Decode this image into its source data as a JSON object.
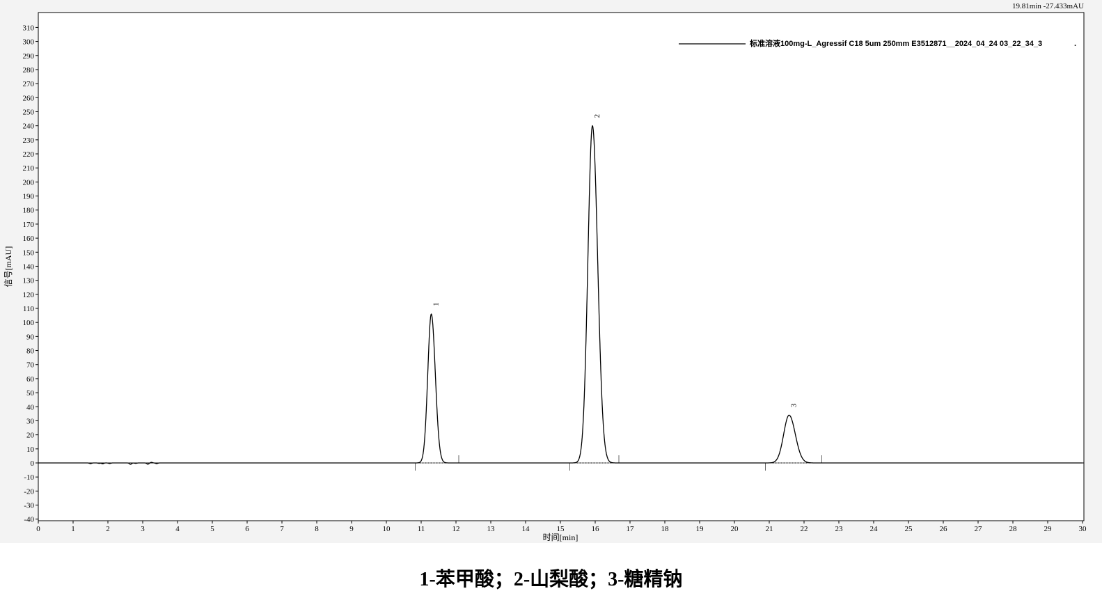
{
  "readout": "19.81min -27.433mAU",
  "caption": "1-苯甲酸；2-山梨酸；3-糖精钠",
  "chart_data": {
    "type": "line",
    "title": "",
    "xlabel": "时间[min]",
    "ylabel": "信号[mAU]",
    "xlim": [
      0,
      30
    ],
    "ylim": [
      -40,
      310
    ],
    "xticks": [
      0,
      1,
      2,
      3,
      4,
      5,
      6,
      7,
      8,
      9,
      10,
      11,
      12,
      13,
      14,
      15,
      16,
      17,
      18,
      19,
      20,
      21,
      22,
      23,
      24,
      25,
      26,
      27,
      28,
      29,
      30
    ],
    "yticks": [
      -40,
      -30,
      -20,
      -10,
      0,
      10,
      20,
      30,
      40,
      50,
      60,
      70,
      80,
      90,
      100,
      110,
      120,
      130,
      140,
      150,
      160,
      170,
      180,
      190,
      200,
      210,
      220,
      230,
      240,
      250,
      260,
      270,
      280,
      290,
      300,
      310
    ],
    "grid": false,
    "legend": {
      "position": "top-right",
      "entries": [
        "标准溶液100mg-L_Agressif C18 5um 250mm E3512871__2024_04_24 03_22_34_3"
      ],
      "trailing_mark": "."
    },
    "series_color": "#000000",
    "baseline_noise": [
      [
        1.5,
        -0.5
      ],
      [
        1.75,
        -0.3
      ],
      [
        1.85,
        -0.6
      ],
      [
        2.05,
        -0.4
      ],
      [
        2.65,
        -1.0
      ],
      [
        2.8,
        -0.3
      ],
      [
        3.15,
        -0.9
      ],
      [
        3.25,
        0.4
      ],
      [
        3.4,
        -0.5
      ]
    ],
    "peaks": [
      {
        "label": "1",
        "rt": 11.29,
        "height": 106,
        "start": 10.83,
        "end": 12.08
      },
      {
        "label": "2",
        "rt": 15.92,
        "height": 240,
        "start": 15.27,
        "end": 16.68
      },
      {
        "label": "3",
        "rt": 21.57,
        "height": 34,
        "start": 20.89,
        "end": 22.51
      }
    ]
  }
}
